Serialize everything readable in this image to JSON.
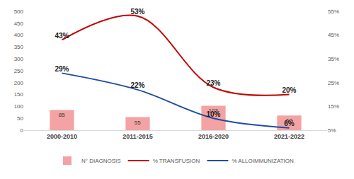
{
  "chart_data": {
    "type": "bar",
    "categories": [
      "2000-2010",
      "2011-2015",
      "2016-2020",
      "2021-2022"
    ],
    "series": [
      {
        "name": "N° DIAGNOSIS",
        "type": "bar",
        "color": "#f3a3a3",
        "data_labels": true,
        "values": [
          85,
          55,
          103,
          62
        ]
      },
      {
        "name": "% TRANSFUSION",
        "type": "line",
        "axis": "y2",
        "color": "#c00000",
        "line_style": "smooth",
        "data_labels": true,
        "values": [
          43,
          53,
          23,
          20
        ],
        "value_labels": [
          "43%",
          "53%",
          "23%",
          "20%"
        ]
      },
      {
        "name": "% ALLOIMMUNIZATION",
        "type": "line",
        "axis": "y2",
        "color": "#1f4e9c",
        "line_style": "smooth",
        "data_labels": true,
        "values": [
          29,
          22,
          10,
          6
        ],
        "value_labels": [
          "29%",
          "22%",
          "10%",
          "6%"
        ]
      }
    ],
    "ylim": [
      0,
      500
    ],
    "yticks": [
      0,
      50,
      100,
      150,
      200,
      250,
      300,
      350,
      400,
      450,
      500
    ],
    "y2lim": [
      5,
      55
    ],
    "y2ticks": [
      {
        "value": 5,
        "label": "5%"
      },
      {
        "value": 15,
        "label": "15%"
      },
      {
        "value": 25,
        "label": "25%"
      },
      {
        "value": 35,
        "label": "35%"
      },
      {
        "value": 45,
        "label": "45%"
      },
      {
        "value": 55,
        "label": "55%"
      }
    ],
    "grid": false,
    "legend": "bottom"
  }
}
